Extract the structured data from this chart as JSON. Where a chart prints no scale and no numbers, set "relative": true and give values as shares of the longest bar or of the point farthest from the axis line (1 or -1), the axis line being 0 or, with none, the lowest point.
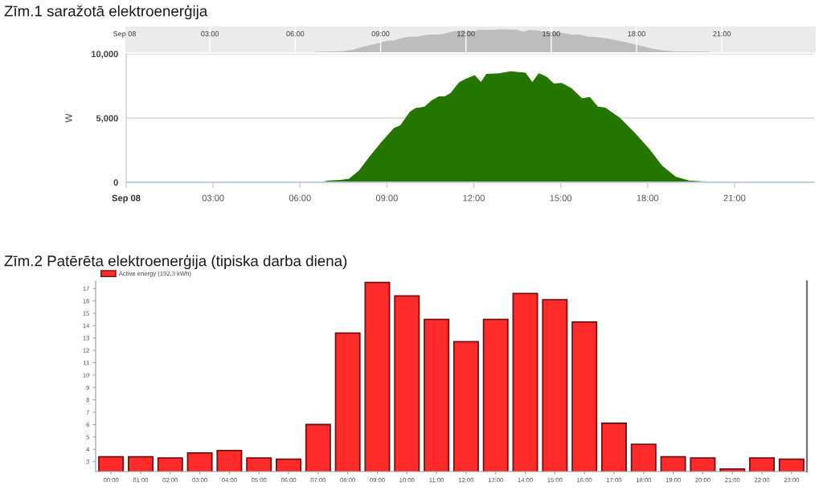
{
  "chart_data": [
    {
      "type": "area",
      "title": "Zīm.1 saražotā elektroenerģija",
      "relative": true,
      "color": "#bdbdbd",
      "grid": "x",
      "tick_labels": "x",
      "x": [
        6.7,
        7.0,
        7.4,
        7.7,
        8.05,
        8.4,
        8.8,
        9.25,
        9.47,
        9.8,
        10.0,
        10.3,
        10.55,
        10.8,
        11.0,
        11.2,
        11.5,
        11.75,
        12.03,
        12.25,
        12.44,
        12.86,
        13.28,
        13.78,
        14.02,
        14.25,
        14.53,
        14.76,
        15.03,
        15.36,
        15.73,
        16.0,
        16.28,
        16.52,
        17.03,
        17.58,
        18.04,
        18.5,
        18.97,
        19.43,
        19.9,
        20.55
      ],
      "values": [
        0,
        0.01,
        0.02,
        0.03,
        0.1,
        0.23,
        0.35,
        0.49,
        0.51,
        0.63,
        0.67,
        0.68,
        0.74,
        0.77,
        0.77,
        0.8,
        0.9,
        0.94,
        0.97,
        0.9,
        0.98,
        0.98,
        1.0,
        0.99,
        0.9,
        0.98,
        0.95,
        0.89,
        0.9,
        0.85,
        0.76,
        0.77,
        0.68,
        0.67,
        0.58,
        0.44,
        0.3,
        0.15,
        0.05,
        0.01,
        0.01,
        0
      ],
      "xlim": [
        0,
        24.3
      ],
      "xticks": [
        {
          "value": 0,
          "label": "Sep 08"
        },
        {
          "value": 3,
          "label": "03:00"
        },
        {
          "value": 6,
          "label": "06:00"
        },
        {
          "value": 9,
          "label": "09:00"
        },
        {
          "value": 12,
          "label": "12:00"
        },
        {
          "value": 15,
          "label": "15:00"
        },
        {
          "value": 18,
          "label": "18:00"
        },
        {
          "value": 21,
          "label": "21:00"
        }
      ]
    },
    {
      "type": "area",
      "ylabel": "W",
      "color": "#247600",
      "grid": "y",
      "x": [
        6.7,
        7.0,
        7.4,
        7.7,
        8.05,
        8.4,
        8.8,
        9.25,
        9.47,
        9.8,
        10.0,
        10.3,
        10.55,
        10.8,
        11.0,
        11.2,
        11.5,
        11.75,
        12.03,
        12.25,
        12.44,
        12.86,
        13.28,
        13.78,
        14.02,
        14.25,
        14.53,
        14.76,
        15.03,
        15.36,
        15.73,
        16.0,
        16.28,
        16.52,
        17.03,
        17.58,
        18.04,
        18.5,
        18.97,
        19.43,
        19.9,
        20.55
      ],
      "values": [
        0,
        100,
        150,
        250,
        900,
        1950,
        3050,
        4200,
        4400,
        5450,
        5750,
        5850,
        6350,
        6650,
        6650,
        6900,
        7750,
        8050,
        8300,
        7750,
        8400,
        8450,
        8600,
        8500,
        7750,
        8450,
        8150,
        7650,
        7700,
        7300,
        6500,
        6600,
        5850,
        5800,
        5000,
        3750,
        2600,
        1250,
        400,
        100,
        50,
        0
      ],
      "xlim": [
        0,
        23.75
      ],
      "xticks": [
        {
          "value": 0,
          "label": "Sep 08"
        },
        {
          "value": 3,
          "label": "03:00"
        },
        {
          "value": 6,
          "label": "06:00"
        },
        {
          "value": 9,
          "label": "09:00"
        },
        {
          "value": 12,
          "label": "12:00"
        },
        {
          "value": 15,
          "label": "15:00"
        },
        {
          "value": 18,
          "label": "18:00"
        },
        {
          "value": 21,
          "label": "21:00"
        }
      ],
      "ylim": [
        0,
        10000
      ],
      "yticks": [
        0,
        {
          "value": 5000,
          "label": "5,000"
        },
        {
          "value": 10000,
          "label": "10,000"
        }
      ]
    },
    {
      "type": "bar",
      "title": "Zīm.2 Patērēta elektroenerģija (tipiska darba diena)",
      "legend": "top left",
      "categories": [
        "00:00",
        "01:00",
        "02:00",
        "03:00",
        "04:00",
        "05:00",
        "06:00",
        "07:00",
        "08:00",
        "09:00",
        "10:00",
        "11:00",
        "12:00",
        "13:00",
        "14:00",
        "15:00",
        "16:00",
        "17:00",
        "18:00",
        "19:00",
        "20:00",
        "21:00",
        "22:00",
        "23:00"
      ],
      "series": [
        {
          "name": "Active energy (192,3 kWh)",
          "color": "#ff2b2b",
          "values": [
            3.4,
            3.4,
            3.3,
            3.7,
            3.9,
            3.3,
            3.2,
            6.0,
            13.4,
            17.5,
            16.4,
            14.5,
            12.7,
            14.5,
            16.6,
            16.1,
            14.3,
            6.1,
            4.4,
            3.4,
            3.3,
            2.4,
            3.3,
            3.2
          ]
        }
      ],
      "ylim": [
        2.2,
        17.6
      ],
      "yticks": [
        3,
        4,
        5,
        6,
        7,
        8,
        9,
        10,
        11,
        12,
        13,
        14,
        15,
        16,
        17
      ]
    }
  ]
}
